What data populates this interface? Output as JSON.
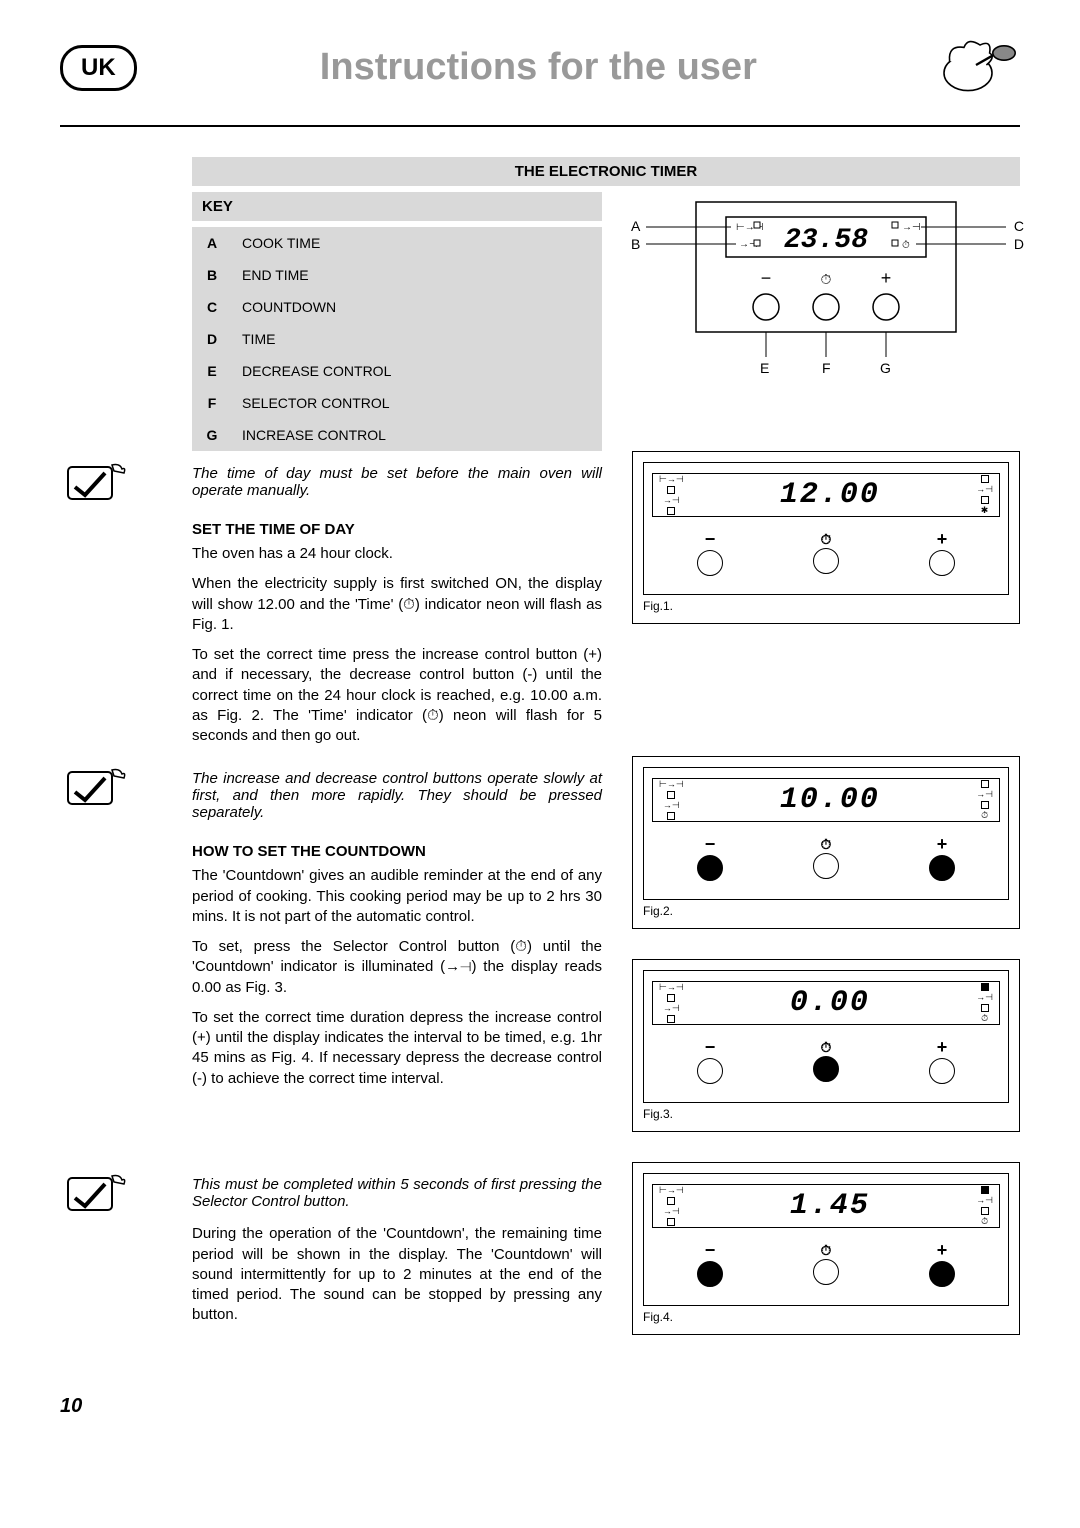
{
  "header": {
    "badge": "UK",
    "title": "Instructions for the user"
  },
  "section_title": "THE ELECTRONIC TIMER",
  "key": {
    "heading": "KEY",
    "rows": [
      {
        "k": "A",
        "v": "COOK TIME"
      },
      {
        "k": "B",
        "v": "END TIME"
      },
      {
        "k": "C",
        "v": "COUNTDOWN"
      },
      {
        "k": "D",
        "v": "TIME"
      },
      {
        "k": "E",
        "v": "DECREASE CONTROL"
      },
      {
        "k": "F",
        "v": "SELECTOR CONTROL"
      },
      {
        "k": "G",
        "v": "INCREASE CONTROL"
      }
    ]
  },
  "diagram": {
    "display": "23.58",
    "labels": {
      "A": "A",
      "B": "B",
      "C": "C",
      "D": "D",
      "E": "E",
      "F": "F",
      "G": "G"
    },
    "minus": "−",
    "clock_small": "⏱",
    "plus": "+"
  },
  "note1": "The time of day must be set before the main oven will operate manually.",
  "set_time": {
    "heading": "SET THE TIME OF DAY",
    "p1": "The oven has a 24 hour clock.",
    "p2": "When the electricity supply is first switched ON, the display will show 12.00 and the 'Time' (⏱) indicator neon will flash as Fig. 1.",
    "p3": "To set the correct time press the increase control button (+) and if necessary, the decrease control button (-) until the correct time on the 24 hour clock is reached, e.g. 10.00 a.m. as Fig. 2. The 'Time' indicator (⏱) neon will flash for 5 seconds and then go out."
  },
  "note2": "The increase and decrease control buttons operate slowly at first, and then more rapidly. They should be pressed separately.",
  "countdown": {
    "heading": "HOW TO SET THE COUNTDOWN",
    "p1": "The 'Countdown' gives an audible reminder at the end of any period of cooking. This cooking period may be up to 2 hrs 30 mins. It is not part of the automatic control.",
    "p2": "To set, press the Selector Control button (⏱) until the 'Countdown' indicator is illuminated (→⊣) the display reads 0.00 as Fig. 3.",
    "p3": "To set the correct time duration depress the increase control (+) until the display indicates the interval to be timed, e.g. 1hr 45 mins as Fig. 4. If necessary depress the decrease control (-) to achieve the correct time interval."
  },
  "note3": "This must be completed within 5 seconds of first pressing the Selector Control button.",
  "countdown2": "During the operation of the 'Countdown', the remaining time period will be shown in the display. The 'Countdown' will sound intermittently for up to 2 minutes at the end of the timed period. The sound can be stopped by pressing any button.",
  "figs": {
    "f1": {
      "display": "12.00",
      "label": "Fig.1.",
      "filled": [
        false,
        false,
        false
      ],
      "ind_filled": false,
      "show_star": true
    },
    "f2": {
      "display": "10.00",
      "label": "Fig.2.",
      "filled": [
        true,
        false,
        true
      ],
      "ind_filled": false,
      "show_star": false
    },
    "f3": {
      "display": "0.00",
      "label": "Fig.3.",
      "filled": [
        false,
        true,
        false
      ],
      "ind_filled": true,
      "show_star": false
    },
    "f4": {
      "display": "1.45",
      "label": "Fig.4.",
      "filled": [
        true,
        false,
        true
      ],
      "ind_filled": true,
      "show_star": false
    }
  },
  "page": "10"
}
